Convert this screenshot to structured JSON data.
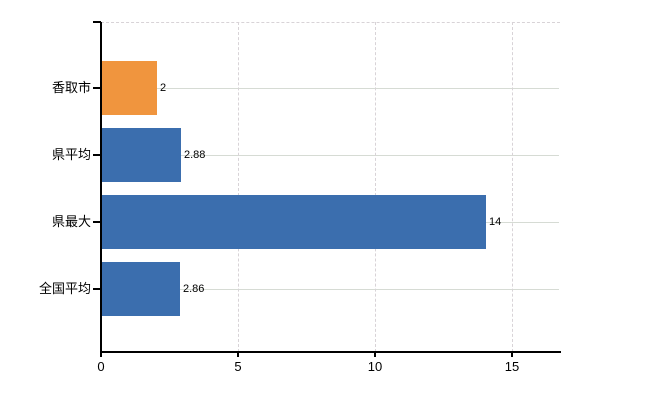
{
  "chart_data": {
    "type": "bar",
    "orientation": "horizontal",
    "title": "",
    "categories": [
      "香取市",
      "県平均",
      "県最大",
      "全国平均"
    ],
    "values": [
      2,
      2.88,
      14,
      2.86
    ],
    "value_labels": [
      "2",
      "2.88",
      "14",
      "2.86"
    ],
    "bar_colors": [
      "#f0953e",
      "#3b6eae",
      "#3b6eae",
      "#3b6eae"
    ],
    "highlight_color": "#f0953e",
    "base_color": "#3b6eae",
    "xlabel": "",
    "ylabel": "",
    "xlim": [
      0,
      16.8
    ],
    "xticks": [
      0,
      5,
      10,
      15
    ],
    "xtick_labels": [
      "0",
      "5",
      "10",
      "15"
    ],
    "grid": {
      "vertical": "dashed",
      "horizontal": "solid",
      "vertical_color": "#d8d3d7",
      "horizontal_color": "#d6dbd4"
    },
    "legend": null,
    "axis_color": "#000000",
    "background_color": "#ffffff"
  }
}
